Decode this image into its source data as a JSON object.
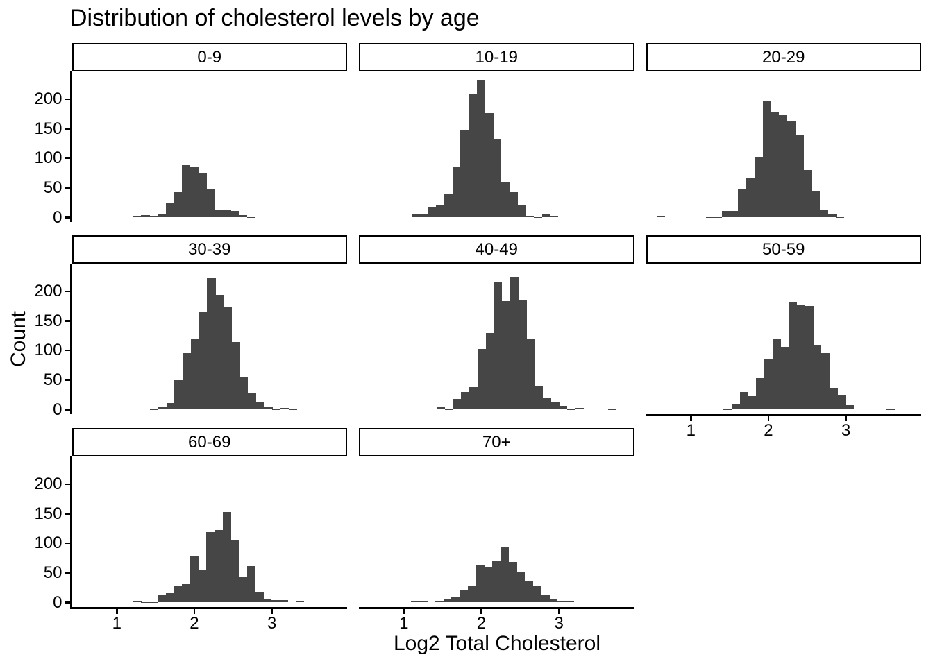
{
  "title": "Distribution of cholesterol levels by age",
  "x_axis": {
    "label": "Log2 Total Cholesterol",
    "ticks": [
      "1",
      "2",
      "3"
    ]
  },
  "y_axis": {
    "label": "Count",
    "ticks": [
      "0",
      "50",
      "100",
      "150",
      "200"
    ]
  },
  "chart_data": {
    "type": "bar",
    "subtype": "faceted-histogram",
    "title": "Distribution of cholesterol levels by age",
    "xlabel": "Log2 Total Cholesterol",
    "ylabel": "Count",
    "x_domain": [
      0.42,
      3.97
    ],
    "y_domain": [
      0,
      250
    ],
    "x_tick_values": [
      1,
      2,
      3
    ],
    "y_tick_values": [
      0,
      50,
      100,
      150,
      200
    ],
    "binwidth": 0.105,
    "bar_color": "#464646",
    "axis_color": "#000000",
    "grid": "off",
    "legend": "none",
    "facets": [
      {
        "label": "0-9",
        "bin_start": 1.21,
        "counts": [
          2,
          4,
          2,
          6,
          24,
          43,
          89,
          85,
          76,
          49,
          14,
          12,
          11,
          4,
          1
        ]
      },
      {
        "label": "10-19",
        "bin_start": 1.1,
        "counts": [
          5,
          5,
          17,
          20,
          40,
          85,
          148,
          209,
          231,
          176,
          132,
          59,
          43,
          20,
          2,
          1,
          5,
          2
        ]
      },
      {
        "label": "20-29",
        "bin_start": 0.56,
        "counts": [
          3,
          0,
          0,
          0,
          0,
          0,
          1,
          1,
          11,
          11,
          48,
          67,
          102,
          196,
          178,
          173,
          162,
          139,
          80,
          45,
          12,
          5,
          1
        ]
      },
      {
        "label": "30-39",
        "bin_start": 1.43,
        "counts": [
          1,
          4,
          11,
          50,
          95,
          119,
          165,
          223,
          194,
          173,
          114,
          54,
          27,
          14,
          4,
          1,
          3,
          1
        ]
      },
      {
        "label": "40-49",
        "bin_start": 1.32,
        "counts": [
          2,
          5,
          1,
          18,
          30,
          38,
          102,
          129,
          216,
          183,
          225,
          186,
          120,
          40,
          19,
          14,
          7,
          1,
          3,
          0,
          0,
          0,
          1
        ]
      },
      {
        "label": "50-59",
        "bin_start": 1.21,
        "counts": [
          2,
          0,
          1,
          10,
          30,
          23,
          53,
          86,
          119,
          106,
          181,
          178,
          175,
          110,
          95,
          37,
          24,
          8,
          2,
          0,
          0,
          0,
          1
        ]
      },
      {
        "label": "60-69",
        "bin_start": 1.21,
        "counts": [
          3,
          1,
          1,
          14,
          16,
          27,
          31,
          78,
          56,
          119,
          123,
          153,
          106,
          43,
          62,
          18,
          7,
          4,
          4,
          0,
          2
        ]
      },
      {
        "label": "70+",
        "bin_start": 1.09,
        "counts": [
          2,
          3,
          0,
          3,
          7,
          9,
          20,
          28,
          64,
          59,
          70,
          94,
          69,
          52,
          36,
          29,
          13,
          6,
          3,
          2
        ]
      }
    ]
  }
}
